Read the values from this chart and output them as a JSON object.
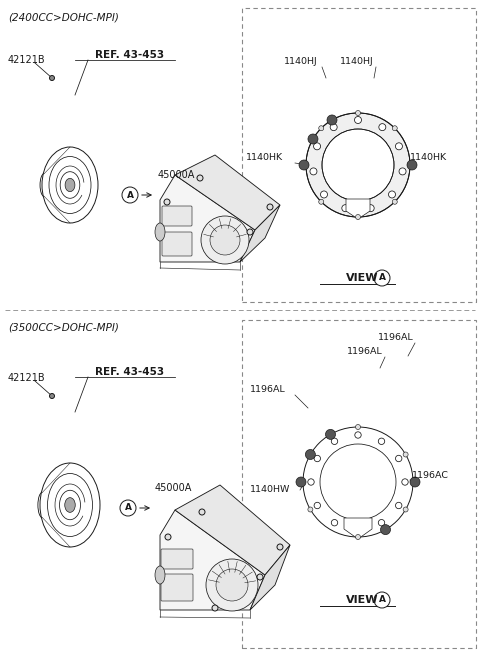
{
  "bg_color": "#ffffff",
  "section1_label": "(2400CC>DOHC-MPI)",
  "section2_label": "(3500CC>DOHC-MPI)",
  "dark": "#1a1a1a",
  "gray": "#666666",
  "light_gray": "#cccccc",
  "label_font": 7.0,
  "title_font": 7.5,
  "top": {
    "label_42121B": "42121B",
    "label_ref": "REF. 43-453",
    "label_45000A": "45000A",
    "label_A": "A",
    "ring_labels": {
      "1140HJ_left": "1140HJ",
      "1140HJ_right": "1140HJ",
      "1140HK_left": "1140HK",
      "1140HK_right": "1140HK"
    },
    "view_label": "VIEW",
    "view_circle": "A"
  },
  "bottom": {
    "label_42121B": "42121B",
    "label_ref": "REF. 43-453",
    "label_45000A": "45000A",
    "label_A": "A",
    "ring_labels": {
      "1196AL_top": "1196AL",
      "1196AL_mid": "1196AL",
      "1196AL_left": "1196AL",
      "1196AC_right": "1196AC",
      "1140HW_left": "1140HW"
    },
    "view_label": "VIEW",
    "view_circle": "A"
  }
}
